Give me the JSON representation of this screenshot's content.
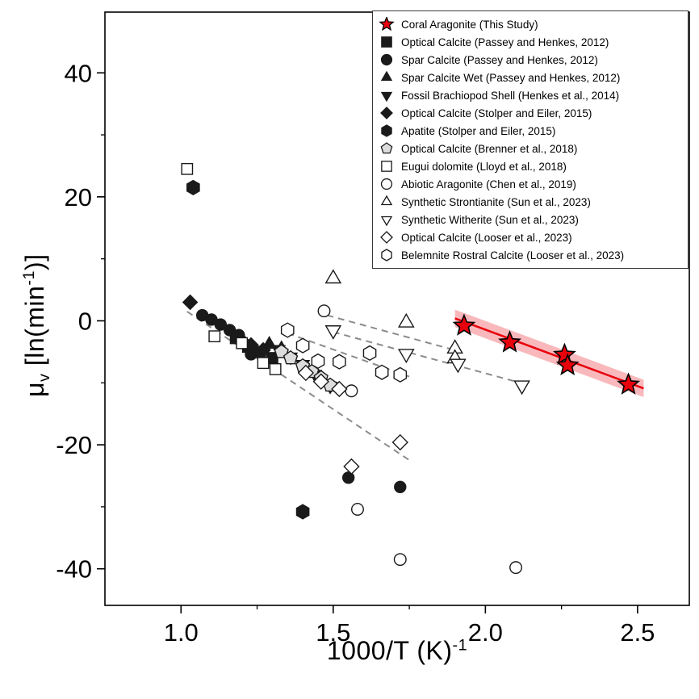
{
  "figure": {
    "x_axis": {
      "label_base": "1000/T (K)",
      "label_sup": "-1",
      "tick_labels": [
        "1.0",
        "1.5",
        "2.0",
        "2.5"
      ],
      "tick_values": [
        1.0,
        1.5,
        2.0,
        2.5
      ],
      "minor_ticks": [
        1.25,
        1.75,
        2.25
      ]
    },
    "y_axis": {
      "p1": "μ",
      "p2_sub": "v",
      "p3": " [ln(min",
      "p4_sup": "-1",
      "p5": ")]",
      "tick_labels": [
        "-40",
        "-20",
        "0",
        "20",
        "40"
      ],
      "tick_values": [
        -40,
        -20,
        0,
        20,
        40
      ],
      "minor_ticks": [
        -30,
        -10,
        10,
        30
      ]
    }
  },
  "colors": {
    "accent_red": "#e8000b",
    "band_red": "rgba(232,0,11,0.28)",
    "marker_dark": "#1a1a1a",
    "marker_gray": "#dcdcdc",
    "dashed_gray": "#8c8c8c",
    "axis_black": "#000000"
  },
  "chart_data": {
    "type": "scatter",
    "title": "",
    "xlabel": "1000/T (K)^-1",
    "ylabel": "mu_v [ln(min^-1)]",
    "xlim": [
      0.75,
      2.67
    ],
    "ylim": [
      -45.9,
      49.8
    ],
    "grid": false,
    "legend_position": "top-right",
    "series": [
      {
        "name": "Coral Aragonite (This Study)",
        "marker": "star",
        "fill": "#e8000b",
        "stroke": "#000000",
        "size": 13,
        "points": [
          [
            1.93,
            -0.8
          ],
          [
            2.08,
            -3.5
          ],
          [
            2.26,
            -5.5
          ],
          [
            2.27,
            -7.2
          ],
          [
            2.47,
            -10.3
          ]
        ]
      },
      {
        "name": "Optical Calcite (Passey and Henkes, 2012)",
        "marker": "square",
        "fill": "#1a1a1a",
        "stroke": "#1a1a1a",
        "size": 7.6,
        "points": [
          [
            1.18,
            -2.8
          ],
          [
            1.22,
            -4.2
          ],
          [
            1.26,
            -5.0
          ],
          [
            1.3,
            -6.0
          ]
        ]
      },
      {
        "name": "Spar Calcite (Passey and Henkes, 2012)",
        "marker": "circle",
        "fill": "#1a1a1a",
        "stroke": "#1a1a1a",
        "size": 7.6,
        "points": [
          [
            1.07,
            0.9
          ],
          [
            1.1,
            0.2
          ],
          [
            1.13,
            -0.6
          ],
          [
            1.16,
            -1.5
          ],
          [
            1.19,
            -2.3
          ],
          [
            1.23,
            -5.4
          ],
          [
            1.55,
            -25.3
          ],
          [
            1.72,
            -26.8
          ]
        ]
      },
      {
        "name": "Spar Calcite Wet (Passey and Henkes, 2012)",
        "marker": "triangle-up",
        "fill": "#1a1a1a",
        "stroke": "#1a1a1a",
        "size": 9.2,
        "points": [
          [
            1.29,
            -3.8
          ],
          [
            1.33,
            -4.5
          ]
        ]
      },
      {
        "name": "Fossil Brachiopod Shell (Henkes et al., 2014)",
        "marker": "triangle-down",
        "fill": "#1a1a1a",
        "stroke": "#1a1a1a",
        "size": 9.2,
        "points": [
          [
            1.32,
            -4.6
          ],
          [
            1.36,
            -5.8
          ],
          [
            1.4,
            -7.0
          ],
          [
            1.44,
            -8.6
          ],
          [
            1.49,
            -10.5
          ]
        ]
      },
      {
        "name": "Optical Calcite (Stolper and Eiler, 2015)",
        "marker": "diamond",
        "fill": "#1a1a1a",
        "stroke": "#1a1a1a",
        "size": 8.8,
        "points": [
          [
            1.03,
            3.0
          ],
          [
            1.2,
            -3.2
          ],
          [
            1.23,
            -3.9
          ],
          [
            1.27,
            -4.7
          ]
        ]
      },
      {
        "name": "Apatite (Stolper and Eiler, 2015)",
        "marker": "hexagon",
        "fill": "#1a1a1a",
        "stroke": "#1a1a1a",
        "size": 8.8,
        "points": [
          [
            1.04,
            21.5
          ],
          [
            1.4,
            -30.8
          ]
        ]
      },
      {
        "name": "Optical Calcite (Brenner et al., 2018)",
        "marker": "pentagon",
        "fill": "#dcdcdc",
        "stroke": "#1a1a1a",
        "size": 8.8,
        "points": [
          [
            1.33,
            -5.0
          ],
          [
            1.36,
            -6.0
          ],
          [
            1.4,
            -7.3
          ],
          [
            1.43,
            -8.2
          ],
          [
            1.46,
            -9.2
          ],
          [
            1.49,
            -10.4
          ]
        ]
      },
      {
        "name": "Eugui dolomite (Lloyd et al., 2018)",
        "marker": "square",
        "fill": "#ffffff",
        "stroke": "#1a1a1a",
        "size": 7.6,
        "points": [
          [
            1.02,
            24.5
          ],
          [
            1.11,
            -2.5
          ],
          [
            1.2,
            -3.6
          ],
          [
            1.27,
            -6.8
          ],
          [
            1.31,
            -7.8
          ]
        ]
      },
      {
        "name": "Abiotic Aragonite (Chen et al., 2019)",
        "marker": "circle",
        "fill": "#ffffff",
        "stroke": "#1a1a1a",
        "size": 7.9,
        "points": [
          [
            1.47,
            1.6
          ],
          [
            1.56,
            -11.3
          ],
          [
            1.58,
            -30.4
          ],
          [
            1.72,
            -38.5
          ],
          [
            2.1,
            -39.8
          ]
        ]
      },
      {
        "name": "Synthetic Strontianite (Sun et al., 2023)",
        "marker": "triangle-up",
        "fill": "#ffffff",
        "stroke": "#1a1a1a",
        "size": 10.5,
        "points": [
          [
            1.5,
            6.8
          ],
          [
            1.74,
            -0.3
          ],
          [
            1.9,
            -4.5
          ],
          [
            1.9,
            -6.1
          ]
        ]
      },
      {
        "name": "Synthetic Witherite (Sun et al., 2023)",
        "marker": "triangle-down",
        "fill": "#ffffff",
        "stroke": "#1a1a1a",
        "size": 10.5,
        "points": [
          [
            1.5,
            -1.5
          ],
          [
            1.74,
            -5.3
          ],
          [
            1.91,
            -6.9
          ],
          [
            2.12,
            -10.4
          ]
        ]
      },
      {
        "name": "Optical Calcite (Looser et al., 2023)",
        "marker": "diamond",
        "fill": "#ffffff",
        "stroke": "#1a1a1a",
        "size": 9.2,
        "points": [
          [
            1.41,
            -8.4
          ],
          [
            1.46,
            -9.8
          ],
          [
            1.52,
            -11.0
          ],
          [
            1.72,
            -19.6
          ],
          [
            1.56,
            -23.5
          ]
        ]
      },
      {
        "name": "Belemnite Rostral Calcite (Looser et al., 2023)",
        "marker": "hexagon",
        "fill": "#ffffff",
        "stroke": "#1a1a1a",
        "size": 8.8,
        "points": [
          [
            1.35,
            -1.5
          ],
          [
            1.4,
            -4.0
          ],
          [
            1.45,
            -6.5
          ],
          [
            1.52,
            -6.6
          ],
          [
            1.62,
            -5.2
          ],
          [
            1.66,
            -8.3
          ],
          [
            1.72,
            -8.7
          ]
        ]
      }
    ],
    "trend_lines": [
      {
        "x1": 1.02,
        "y1": 1.5,
        "x2": 1.76,
        "y2": -22.8
      },
      {
        "x1": 1.35,
        "y1": -2.0,
        "x2": 1.75,
        "y2": -9.0
      },
      {
        "x1": 1.48,
        "y1": 0.9,
        "x2": 1.92,
        "y2": -5.0
      },
      {
        "x1": 1.5,
        "y1": -1.8,
        "x2": 2.13,
        "y2": -10.2
      }
    ],
    "regression": {
      "name": "Coral Aragonite fit",
      "x1": 1.9,
      "y1": 0.4,
      "x2": 2.52,
      "y2": -10.9,
      "band_halfwidth": 1.4,
      "line_color": "#e8000b",
      "band_color": "rgba(232,0,11,0.28)"
    }
  }
}
